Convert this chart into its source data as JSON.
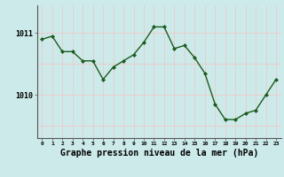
{
  "hours": [
    0,
    1,
    2,
    3,
    4,
    5,
    6,
    7,
    8,
    9,
    10,
    11,
    12,
    13,
    14,
    15,
    16,
    17,
    18,
    19,
    20,
    21,
    22,
    23
  ],
  "pressure": [
    1010.9,
    1010.95,
    1010.7,
    1010.7,
    1010.55,
    1010.55,
    1010.25,
    1010.45,
    1010.55,
    1010.65,
    1010.85,
    1011.1,
    1011.1,
    1010.75,
    1010.8,
    1010.6,
    1010.35,
    1009.85,
    1009.6,
    1009.6,
    1009.7,
    1009.75,
    1010.0,
    1010.25
  ],
  "line_color": "#1a5c1a",
  "marker": "D",
  "markersize": 2.0,
  "linewidth": 1.0,
  "bg_color": "#cceaea",
  "grid_v_color": "#f0c8c8",
  "grid_h_color": "#f0c8c8",
  "xlabel": "Graphe pression niveau de la mer (hPa)",
  "xlabel_fontsize": 7,
  "ylim": [
    1009.3,
    1011.45
  ],
  "xlim": [
    -0.5,
    23.5
  ]
}
